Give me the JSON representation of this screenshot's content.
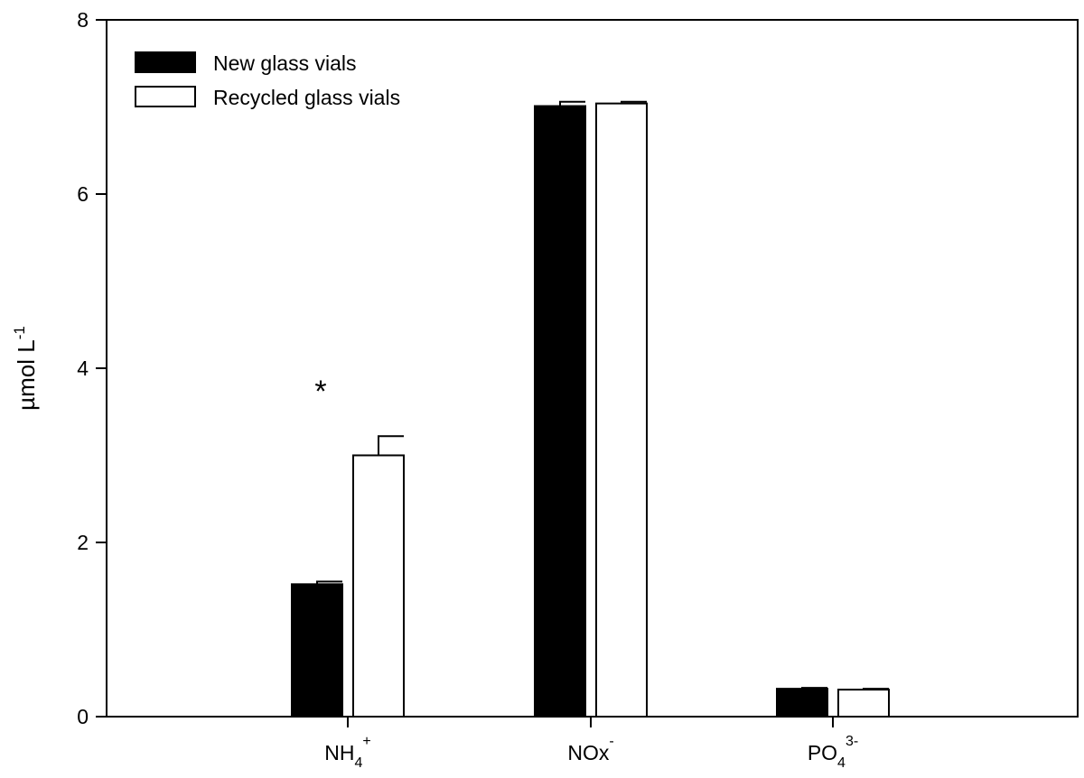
{
  "chart_data": {
    "type": "bar",
    "title": "",
    "xlabel": "",
    "ylabel": {
      "base": "µmol L",
      "superscript": "-1"
    },
    "ylim": [
      0,
      8
    ],
    "yticks": [
      0,
      2,
      4,
      6,
      8
    ],
    "grid": false,
    "legend_position": "top-left",
    "categories": [
      {
        "base": "NH",
        "sub": "4",
        "sup": "+"
      },
      {
        "base": "NOx",
        "sub": "",
        "sup": "-"
      },
      {
        "base": "PO",
        "sub": "4",
        "sup": "3-"
      }
    ],
    "series": [
      {
        "name": "New glass vials",
        "fill": "#000000",
        "values": [
          1.52,
          7.01,
          0.32
        ],
        "errors": [
          0.03,
          0.05,
          0.01
        ]
      },
      {
        "name": "Recycled glass vials",
        "fill": "#ffffff",
        "values": [
          3.0,
          7.04,
          0.31
        ],
        "errors": [
          0.22,
          0.02,
          0.01
        ]
      }
    ],
    "annotations": [
      {
        "text": "*",
        "category_index": 0,
        "y": 3.7
      }
    ]
  }
}
